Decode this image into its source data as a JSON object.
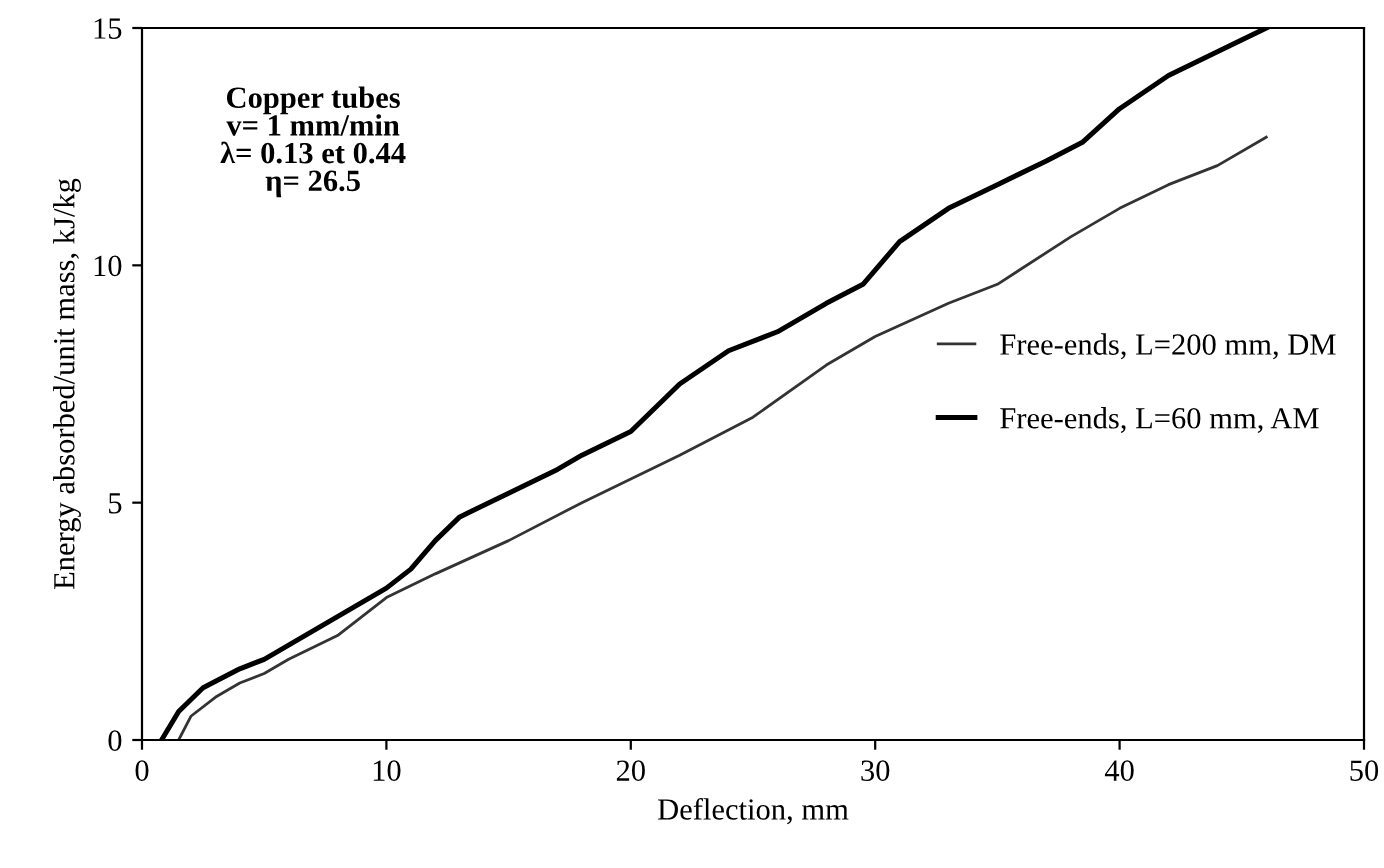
{
  "chart_data": {
    "type": "line",
    "xlabel": "Deflection, mm",
    "ylabel": "Energy absorbed/unit mass, kJ/kg",
    "xlim": [
      0,
      50
    ],
    "xticks": [
      0,
      10,
      20,
      30,
      40,
      50
    ],
    "ylim": [
      0,
      15
    ],
    "yticks": [
      0,
      5,
      10,
      15
    ],
    "annotations": [
      "Copper tubes\nv= 1 mm/min\nλ= 0.13 et 0.44\nη= 26.5"
    ],
    "legend": "center right",
    "grid": false,
    "series": [
      {
        "name": "Free-ends, L=200 mm, DM",
        "color": "#333333",
        "x": [
          1.5,
          2,
          3,
          4,
          5,
          6,
          8,
          10,
          12,
          15,
          18,
          20,
          22,
          25,
          28,
          30,
          33,
          35,
          38,
          40,
          42,
          44,
          46
        ],
        "values": [
          0,
          0.5,
          0.9,
          1.2,
          1.4,
          1.7,
          2.2,
          3.0,
          3.5,
          4.2,
          5.0,
          5.5,
          6.0,
          6.8,
          7.9,
          8.5,
          9.2,
          9.6,
          10.6,
          11.2,
          11.7,
          12.1,
          12.7
        ]
      },
      {
        "name": "Free-ends, L=60 mm, AM",
        "color": "#000000",
        "x": [
          0.8,
          1.5,
          2.5,
          4,
          5,
          6,
          8,
          10,
          11,
          12,
          13,
          15,
          17,
          18,
          20,
          21,
          22,
          24,
          26,
          28,
          29.5,
          31,
          33,
          35,
          37,
          38.5,
          40,
          42,
          44,
          46
        ],
        "values": [
          0,
          0.6,
          1.1,
          1.5,
          1.7,
          2.0,
          2.6,
          3.2,
          3.6,
          4.2,
          4.7,
          5.2,
          5.7,
          6.0,
          6.5,
          7.0,
          7.5,
          8.2,
          8.6,
          9.2,
          9.6,
          10.5,
          11.2,
          11.7,
          12.2,
          12.6,
          13.3,
          14.0,
          14.5,
          15.0
        ]
      }
    ]
  }
}
